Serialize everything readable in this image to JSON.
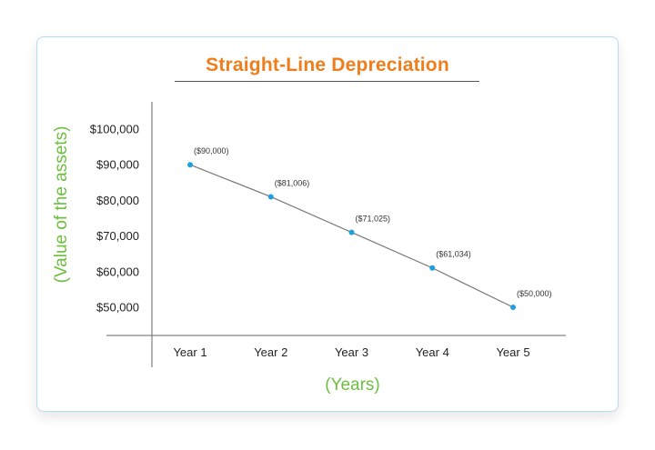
{
  "chart_data": {
    "type": "line",
    "title": "Straight-Line Depreciation",
    "xlabel": "(Years)",
    "ylabel": "(Value of the assets)",
    "categories": [
      "Year 1",
      "Year 2",
      "Year 3",
      "Year 4",
      "Year 5"
    ],
    "values": [
      90000,
      81006,
      71025,
      61034,
      50000
    ],
    "data_labels": [
      "($90,000)",
      "($81,006)",
      "($71,025)",
      "($61,034)",
      "($50,000)"
    ],
    "yticks": [
      100000,
      90000,
      80000,
      70000,
      60000,
      50000
    ],
    "ytick_labels": [
      "$100,000",
      "$90,000",
      "$80,000",
      "$70,000",
      "$60,000",
      "$50,000"
    ],
    "ylim": [
      50000,
      100000
    ],
    "grid": false,
    "colors": {
      "title": "#f07d1b",
      "axis_titles": "#6cbf3f",
      "line": "#777777",
      "point": "#1e9fe0",
      "border": "#b5dcef"
    }
  }
}
